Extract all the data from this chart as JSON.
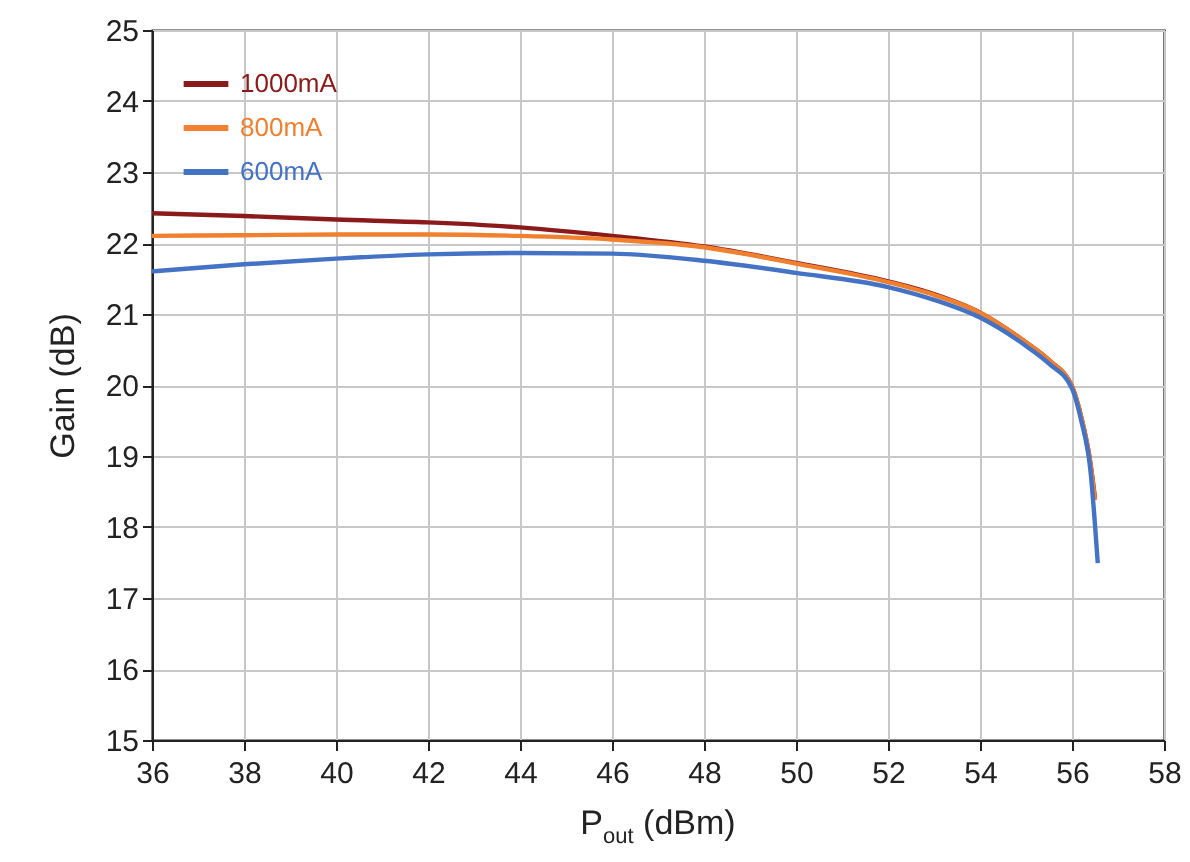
{
  "chart_data": {
    "type": "line",
    "xlabel": "P$_{out}$ (dBm)",
    "ylabel": "Gain (dB)",
    "xlim": [
      36,
      58
    ],
    "ylim": [
      15,
      25
    ],
    "xticks": [
      36,
      38,
      40,
      42,
      44,
      46,
      48,
      50,
      52,
      54,
      56,
      58
    ],
    "yticks": [
      15,
      16,
      17,
      18,
      19,
      20,
      21,
      22,
      23,
      24,
      25
    ],
    "grid": true,
    "legend": "top left",
    "line_style": "solid",
    "marker": "none",
    "series": [
      {
        "name": "1000mA",
        "color": "#8b1a1a",
        "x": [
          36,
          38,
          40,
          42,
          44,
          46,
          48,
          50,
          52,
          53,
          54,
          55,
          55.5,
          56,
          56.2,
          56.4,
          56.5
        ],
        "values": [
          22.42,
          22.38,
          22.33,
          22.29,
          22.22,
          22.1,
          21.95,
          21.72,
          21.46,
          21.28,
          21.02,
          20.6,
          20.35,
          19.98,
          19.55,
          18.9,
          18.4
        ]
      },
      {
        "name": "800mA",
        "color": "#f07f2e",
        "x": [
          36,
          38,
          40,
          42,
          44,
          46,
          48,
          50,
          52,
          53,
          54,
          55,
          55.5,
          56,
          56.2,
          56.4,
          56.5
        ],
        "values": [
          22.1,
          22.11,
          22.12,
          22.12,
          22.1,
          22.05,
          21.94,
          21.71,
          21.45,
          21.27,
          21.02,
          20.6,
          20.35,
          19.98,
          19.55,
          18.9,
          18.38
        ]
      },
      {
        "name": "600mA",
        "color": "#4472c4",
        "x": [
          36,
          38,
          40,
          42,
          44,
          46,
          48,
          50,
          52,
          53,
          54,
          55,
          55.5,
          56,
          56.2,
          56.4,
          56.56
        ],
        "values": [
          21.6,
          21.7,
          21.78,
          21.84,
          21.86,
          21.85,
          21.75,
          21.58,
          21.38,
          21.2,
          20.95,
          20.55,
          20.3,
          19.95,
          19.5,
          18.8,
          17.49
        ]
      }
    ]
  }
}
